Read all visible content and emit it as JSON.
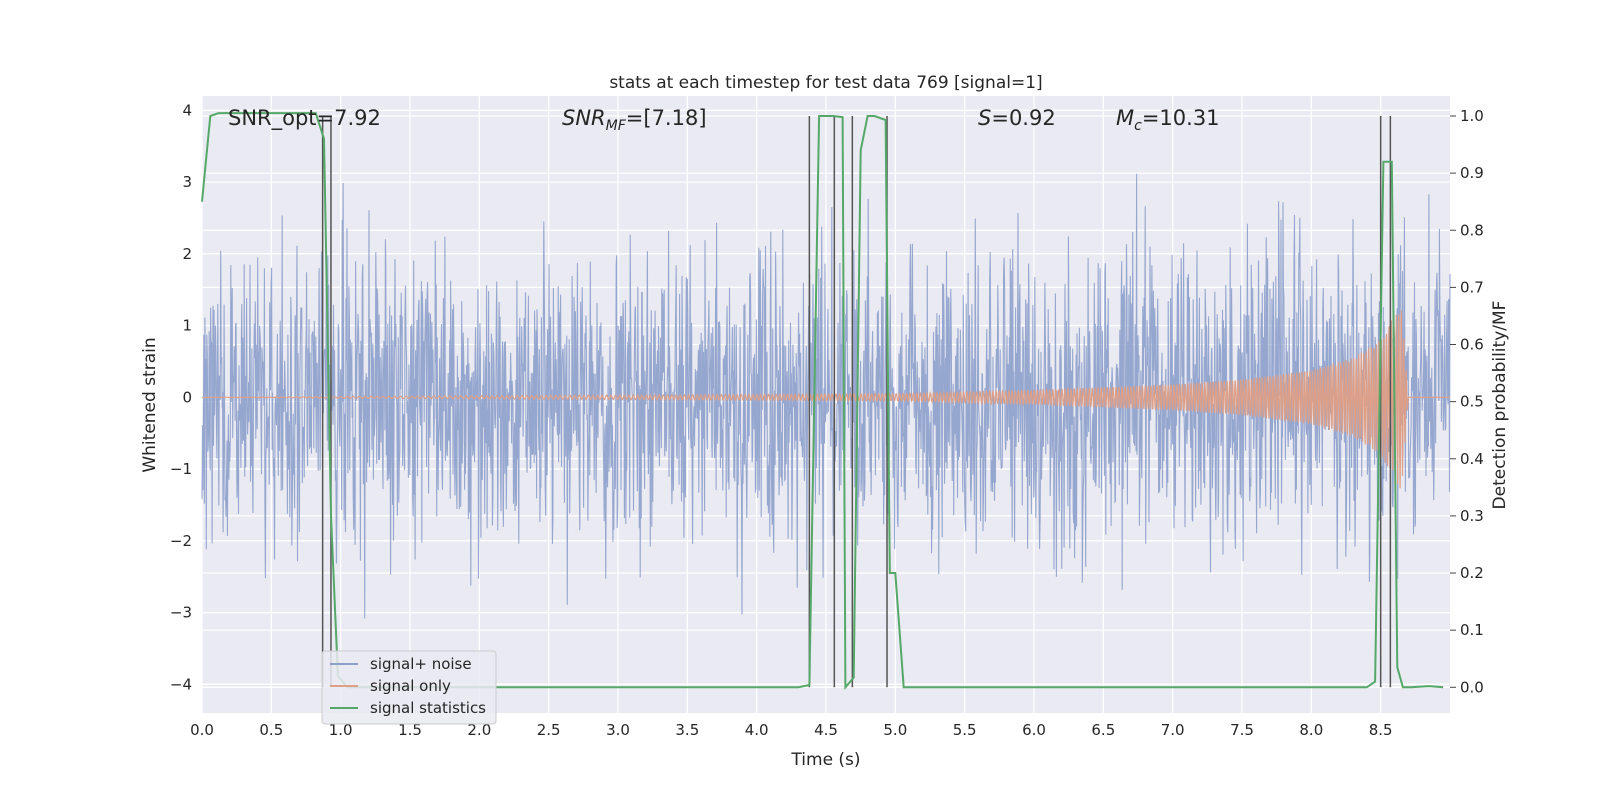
{
  "chart_data": {
    "type": "line",
    "title": "stats at each timestep for test data 769 [signal=1]",
    "xlabel": "Time (s)",
    "ylabel_left": "Whitened strain",
    "ylabel_right": "Detection probability/MF",
    "xlim": [
      0.0,
      9.0
    ],
    "ylim_left": [
      -4.4,
      4.2
    ],
    "ylim_right": [
      -0.045,
      1.035
    ],
    "x_ticks": [
      0.0,
      0.5,
      1.0,
      1.5,
      2.0,
      2.5,
      3.0,
      3.5,
      4.0,
      4.5,
      5.0,
      5.5,
      6.0,
      6.5,
      7.0,
      7.5,
      8.0,
      8.5
    ],
    "x_tick_labels": [
      "0.0",
      "0.5",
      "1.0",
      "1.5",
      "2.0",
      "2.5",
      "3.0",
      "3.5",
      "4.0",
      "4.5",
      "5.0",
      "5.5",
      "6.0",
      "6.5",
      "7.0",
      "7.5",
      "8.0",
      "8.5"
    ],
    "y_ticks_left": [
      4,
      3,
      2,
      1,
      0,
      -1,
      -2,
      -3,
      -4
    ],
    "y_tick_labels_left": [
      "4",
      "3",
      "2",
      "1",
      "0",
      "−1",
      "−2",
      "−3",
      "−4"
    ],
    "y_ticks_right": [
      1.0,
      0.9,
      0.8,
      0.7,
      0.6,
      0.5,
      0.4,
      0.3,
      0.2,
      0.1,
      0.0
    ],
    "y_tick_labels_right": [
      "1.0",
      "0.9",
      "0.8",
      "0.7",
      "0.6",
      "0.5",
      "0.4",
      "0.3",
      "0.2",
      "0.1",
      "0.0"
    ],
    "grid": true,
    "legend_location": "lower-left",
    "annotations": {
      "snr_opt": "SNR_opt=7.92",
      "snr_mf_base": "SNR",
      "snr_mf_sub": "MF",
      "snr_mf_rest": "=[7.18]",
      "s_name": "S",
      "s_rest": "=0.92",
      "mc_base": "M",
      "mc_sub": "c",
      "mc_rest": "=10.31"
    },
    "series": [
      {
        "name": "signal+ noise",
        "color": "#8da0cb",
        "axis": "left",
        "approx_std": 1.0,
        "x_range": [
          0.0,
          9.0
        ],
        "y_range_observed": [
          -4.0,
          3.35
        ]
      },
      {
        "name": "signal only",
        "color": "#dd9f87",
        "axis": "left",
        "description_points": {
          "x": [
            0.0,
            5.0,
            6.0,
            7.0,
            7.5,
            8.0,
            8.3,
            8.5,
            8.6,
            8.65,
            8.7,
            9.0
          ],
          "amplitude": [
            0.0,
            0.05,
            0.1,
            0.18,
            0.25,
            0.38,
            0.55,
            0.8,
            1.15,
            1.3,
            0.0,
            0.0
          ]
        }
      },
      {
        "name": "signal statistics",
        "color": "#55a868",
        "axis": "right",
        "x": [
          0.0,
          0.06,
          0.12,
          0.3,
          0.5,
          0.7,
          0.82,
          0.88,
          0.93,
          0.98,
          1.05,
          2.0,
          3.0,
          4.0,
          4.3,
          4.38,
          4.45,
          4.55,
          4.62,
          4.64,
          4.7,
          4.75,
          4.8,
          4.85,
          4.93,
          4.96,
          5.0,
          5.06,
          5.5,
          6.0,
          7.0,
          8.0,
          8.4,
          8.46,
          8.52,
          8.58,
          8.62,
          8.66,
          8.72,
          8.85,
          8.95
        ],
        "y": [
          0.85,
          1.0,
          1.005,
          1.005,
          1.005,
          1.005,
          1.005,
          0.96,
          0.3,
          0.02,
          0.0,
          0.0,
          0.0,
          0.0,
          0.0,
          0.004,
          1.0,
          1.0,
          0.998,
          0.0,
          0.017,
          0.94,
          1.0,
          1.0,
          0.993,
          0.2,
          0.2,
          0.0,
          0.0,
          0.0,
          0.0,
          0.0,
          0.0,
          0.01,
          0.92,
          0.92,
          0.035,
          0.0,
          0.0,
          0.002,
          0.0
        ]
      }
    ],
    "vlines_x": [
      0.87,
      0.93,
      4.38,
      4.56,
      4.69,
      4.94,
      8.5,
      8.57
    ]
  }
}
